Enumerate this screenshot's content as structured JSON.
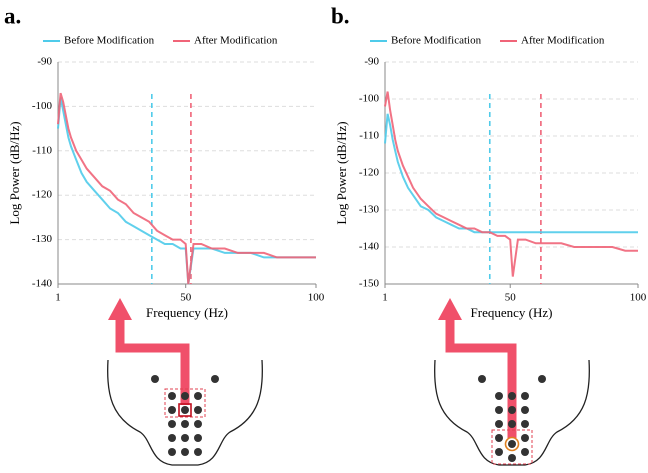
{
  "chart_data": [
    {
      "type": "line",
      "panel_label": "a.",
      "x_label": "Frequency (Hz)",
      "y_label": "Log Power (dB/Hz)",
      "x": [
        1,
        2,
        3,
        4,
        5,
        6,
        8,
        10,
        12,
        15,
        18,
        21,
        24,
        27,
        30,
        33,
        36,
        39,
        42,
        45,
        48,
        50,
        51,
        53,
        56,
        60,
        65,
        70,
        75,
        80,
        85,
        90,
        95,
        100
      ],
      "series": [
        {
          "name": "Before Modification",
          "color": "#4fcbea",
          "values": [
            -105,
            -98,
            -101,
            -104,
            -107,
            -109,
            -112,
            -115,
            -117,
            -119,
            -121,
            -123,
            -124,
            -126,
            -127,
            -128,
            -129,
            -130,
            -131,
            -131,
            -132,
            -132,
            -140,
            -132,
            -132,
            -132,
            -133,
            -133,
            -133,
            -134,
            -134,
            -134,
            -134,
            -134
          ]
        },
        {
          "name": "After Modification",
          "color": "#f06478",
          "values": [
            -104,
            -97,
            -99,
            -102,
            -105,
            -107,
            -110,
            -112,
            -114,
            -116,
            -118,
            -119,
            -121,
            -122,
            -124,
            -125,
            -126,
            -128,
            -129,
            -130,
            -130,
            -131,
            -140,
            -131,
            -131,
            -132,
            -132,
            -133,
            -133,
            -133,
            -134,
            -134,
            -134,
            -134
          ]
        }
      ],
      "vlines": [
        {
          "x": 37,
          "color": "#4fcbea"
        },
        {
          "x": 52,
          "color": "#f06478"
        }
      ],
      "xlim": [
        1,
        100
      ],
      "xticks": [
        1,
        50,
        100
      ],
      "ylim": [
        -140,
        -90
      ],
      "yticks": [
        -140,
        -130,
        -120,
        -110,
        -100,
        -90
      ],
      "grid": true
    },
    {
      "type": "line",
      "panel_label": "b.",
      "x_label": "Frequency (Hz)",
      "y_label": "Log Power (dB/Hz)",
      "x": [
        1,
        2,
        3,
        4,
        5,
        6,
        8,
        10,
        12,
        15,
        18,
        21,
        24,
        27,
        30,
        33,
        36,
        39,
        42,
        45,
        48,
        50,
        51,
        53,
        56,
        60,
        65,
        70,
        75,
        80,
        85,
        90,
        95,
        100
      ],
      "series": [
        {
          "name": "Before Modification",
          "color": "#4fcbea",
          "values": [
            -112,
            -104,
            -107,
            -111,
            -114,
            -117,
            -121,
            -124,
            -126,
            -129,
            -130,
            -132,
            -133,
            -134,
            -135,
            -135,
            -136,
            -136,
            -136,
            -136,
            -136,
            -136,
            -136,
            -136,
            -136,
            -136,
            -136,
            -136,
            -136,
            -136,
            -136,
            -136,
            -136,
            -136
          ]
        },
        {
          "name": "After Modification",
          "color": "#f06478",
          "values": [
            -102,
            -98,
            -103,
            -107,
            -111,
            -114,
            -118,
            -121,
            -124,
            -127,
            -129,
            -131,
            -132,
            -133,
            -134,
            -135,
            -135,
            -136,
            -136,
            -137,
            -137,
            -138,
            -148,
            -138,
            -138,
            -139,
            -139,
            -139,
            -140,
            -140,
            -140,
            -140,
            -141,
            -141
          ]
        }
      ],
      "vlines": [
        {
          "x": 42,
          "color": "#4fcbea"
        },
        {
          "x": 62,
          "color": "#f06478"
        }
      ],
      "xlim": [
        1,
        100
      ],
      "xticks": [
        1,
        50,
        100
      ],
      "ylim": [
        -150,
        -90
      ],
      "yticks": [
        -150,
        -140,
        -130,
        -120,
        -110,
        -100,
        -90
      ],
      "grid": true
    }
  ]
}
